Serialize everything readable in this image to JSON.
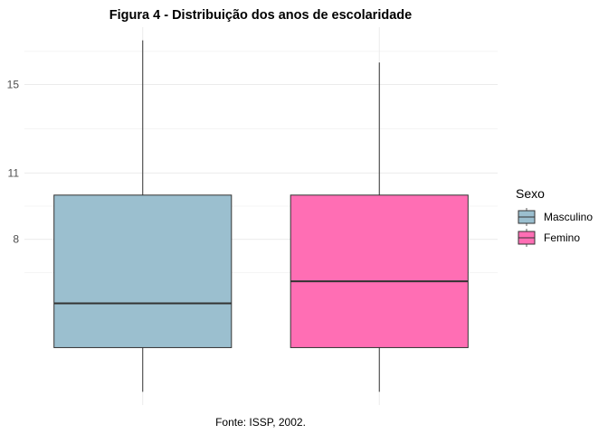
{
  "chart_data": {
    "type": "boxplot",
    "title": "Figura 4 - Distribuição dos anos de escolaridade",
    "caption": "Fonte: ISSP, 2002.",
    "xlabel": "",
    "ylabel": "",
    "ylim": [
      0.5,
      17.6
    ],
    "y_ticks": [
      8,
      11,
      15
    ],
    "y_tick_labels": [
      "8",
      "11",
      "15"
    ],
    "y_minor_grid": [
      6.5,
      9.5,
      13,
      16.5
    ],
    "grid": true,
    "legend": {
      "title": "Sexo",
      "position": "right"
    },
    "series": [
      {
        "name": "Masculino",
        "color": "#9BBFCF",
        "whisker_low": 1.1,
        "q1": 3.1,
        "median": 5.1,
        "q3": 10.0,
        "whisker_high": 17.0
      },
      {
        "name": "Femino",
        "color": "#FF6EB4",
        "whisker_low": 1.1,
        "q1": 3.1,
        "median": 6.1,
        "q3": 10.0,
        "whisker_high": 16.0
      }
    ]
  }
}
